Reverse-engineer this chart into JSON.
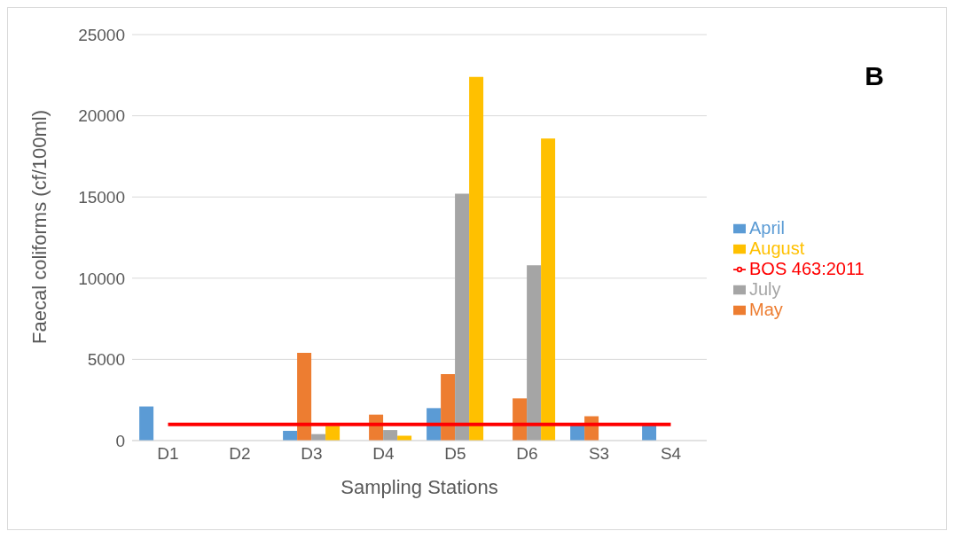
{
  "chart_data": {
    "type": "bar",
    "xlabel": "Sampling Stations",
    "ylabel": "Faecal coliforms (cf/100ml)",
    "annotations": [
      "B"
    ],
    "categories": [
      "D1",
      "D2",
      "D3",
      "D4",
      "D5",
      "D6",
      "S3",
      "S4"
    ],
    "series": [
      {
        "name": "April",
        "color": "#5b9bd5",
        "values": [
          2100,
          null,
          600,
          null,
          2000,
          null,
          1000,
          1000
        ]
      },
      {
        "name": "May",
        "color": "#ed7d31",
        "values": [
          null,
          null,
          5400,
          1600,
          4100,
          2600,
          1500,
          null
        ]
      },
      {
        "name": "July",
        "color": "#a5a5a5",
        "values": [
          null,
          null,
          400,
          650,
          15200,
          10800,
          null,
          null
        ]
      },
      {
        "name": "August",
        "color": "#ffc000",
        "values": [
          null,
          null,
          900,
          300,
          22400,
          18600,
          null,
          null
        ]
      },
      {
        "name": "BOS 463:2011",
        "type": "line",
        "color": "#ff0000",
        "values": [
          1000,
          1000,
          1000,
          1000,
          1000,
          1000,
          1000,
          1000
        ]
      }
    ],
    "ylim": [
      0,
      25000
    ],
    "yticks": [
      0,
      5000,
      10000,
      15000,
      20000,
      25000
    ],
    "grid": "y",
    "legend": "right"
  }
}
